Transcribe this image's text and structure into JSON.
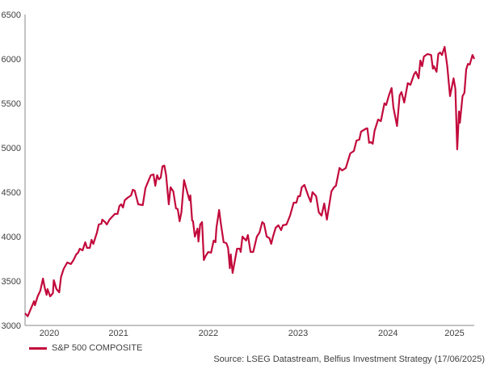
{
  "chart_data": {
    "type": "line",
    "title": "",
    "xlabel": "",
    "ylabel": "",
    "ylim": [
      3000,
      6500
    ],
    "xlim": [
      2020.5,
      2025.5
    ],
    "yticks": [
      3000,
      3500,
      4000,
      4500,
      5000,
      5500,
      6000,
      6500
    ],
    "xticks": [
      {
        "label": "2020",
        "at": 2020.77
      },
      {
        "label": "2021",
        "at": 2021.54
      },
      {
        "label": "2022",
        "at": 2022.54
      },
      {
        "label": "2023",
        "at": 2023.54
      },
      {
        "label": "2024",
        "at": 2024.54
      },
      {
        "label": "2025",
        "at": 2025.28
      }
    ],
    "grid": false,
    "legend_position": "bottom-left",
    "series": [
      {
        "name": "S&P 500 COMPOSITE",
        "color": "#c20a3c",
        "x": [
          2020.5,
          2020.53,
          2020.6,
          2020.61,
          2020.64,
          2020.67,
          2020.7,
          2020.72,
          2020.74,
          2020.75,
          2020.78,
          2020.81,
          2020.82,
          2020.85,
          2020.88,
          2020.9,
          2020.93,
          2020.97,
          2021.01,
          2021.04,
          2021.07,
          2021.09,
          2021.11,
          2021.14,
          2021.17,
          2021.19,
          2021.22,
          2021.24,
          2021.26,
          2021.3,
          2021.32,
          2021.35,
          2021.36,
          2021.39,
          2021.41,
          2021.44,
          2021.5,
          2021.53,
          2021.55,
          2021.57,
          2021.59,
          2021.61,
          2021.64,
          2021.68,
          2021.7,
          2021.72,
          2021.76,
          2021.81,
          2021.84,
          2021.88,
          2021.9,
          2021.93,
          2021.95,
          2021.97,
          2021.99,
          2022.01,
          2022.03,
          2022.05,
          2022.07,
          2022.1,
          2022.12,
          2022.15,
          2022.18,
          2022.2,
          2022.22,
          2022.24,
          2022.27,
          2022.31,
          2022.33,
          2022.34,
          2022.36,
          2022.37,
          2022.39,
          2022.42,
          2022.43,
          2022.45,
          2022.47,
          2022.49,
          2022.51,
          2022.54,
          2022.57,
          2022.6,
          2022.62,
          2022.63,
          2022.66,
          2022.68,
          2022.71,
          2022.74,
          2022.76,
          2022.78,
          2022.79,
          2022.81,
          2022.86,
          2022.89,
          2022.9,
          2022.92,
          2022.96,
          2022.98,
          2023.01,
          2023.04,
          2023.08,
          2023.11,
          2023.14,
          2023.16,
          2023.19,
          2023.22,
          2023.24,
          2023.26,
          2023.29,
          2023.32,
          2023.35,
          2023.37,
          2023.41,
          2023.45,
          2023.49,
          2023.52,
          2023.54,
          2023.56,
          2023.58,
          2023.61,
          2023.65,
          2023.68,
          2023.7,
          2023.74,
          2023.77,
          2023.8,
          2023.83,
          2023.86,
          2023.91,
          2023.94,
          2023.96,
          2024.0,
          2024.03,
          2024.07,
          2024.12,
          2024.16,
          2024.19,
          2024.22,
          2024.24,
          2024.3,
          2024.31,
          2024.33,
          2024.35,
          2024.37,
          2024.39,
          2024.43,
          2024.46,
          2024.5,
          2024.52,
          2024.55,
          2024.58,
          2024.6,
          2024.64,
          2024.67,
          2024.69,
          2024.72,
          2024.76,
          2024.79,
          2024.83,
          2024.85,
          2024.88,
          2024.9,
          2024.92,
          2024.94,
          2024.98,
          2025.02,
          2025.04,
          2025.05,
          2025.08,
          2025.1,
          2025.12,
          2025.14,
          2025.17,
          2025.2,
          2025.23,
          2025.27,
          2025.29,
          2025.31,
          2025.33,
          2025.34,
          2025.37,
          2025.39,
          2025.41,
          2025.43,
          2025.45,
          2025.48,
          2025.5
        ],
        "y": [
          3136,
          3103,
          3273,
          3227,
          3327,
          3391,
          3527,
          3418,
          3345,
          3409,
          3327,
          3364,
          3509,
          3409,
          3373,
          3545,
          3636,
          3709,
          3691,
          3736,
          3800,
          3818,
          3864,
          3845,
          3936,
          3873,
          3873,
          3964,
          3918,
          4045,
          4136,
          4145,
          4191,
          4164,
          4136,
          4191,
          4255,
          4255,
          4345,
          4364,
          4327,
          4409,
          4436,
          4464,
          4527,
          4518,
          4364,
          4355,
          4545,
          4645,
          4691,
          4700,
          4573,
          4691,
          4645,
          4664,
          4791,
          4800,
          4691,
          4364,
          4555,
          4509,
          4318,
          4309,
          4173,
          4273,
          4636,
          4482,
          4409,
          4464,
          4182,
          4173,
          4000,
          4091,
          3945,
          4136,
          4164,
          3736,
          3782,
          3827,
          3818,
          3955,
          3936,
          4100,
          4300,
          4145,
          3936,
          3927,
          3873,
          3645,
          3800,
          3591,
          3864,
          3864,
          3827,
          4000,
          3955,
          4018,
          3827,
          3827,
          4000,
          4045,
          4164,
          4145,
          4000,
          3982,
          3918,
          4000,
          4100,
          4127,
          4073,
          4127,
          4136,
          4236,
          4382,
          4382,
          4455,
          4455,
          4555,
          4582,
          4464,
          4391,
          4500,
          4455,
          4273,
          4236,
          4373,
          4191,
          4509,
          4555,
          4573,
          4773,
          4745,
          4773,
          4936,
          4964,
          5082,
          5091,
          5182,
          5218,
          5218,
          5055,
          5064,
          5045,
          5191,
          5318,
          5300,
          5500,
          5482,
          5591,
          5673,
          5455,
          5245,
          5591,
          5627,
          5509,
          5727,
          5709,
          5827,
          5855,
          5782,
          5982,
          5918,
          6027,
          6055,
          6045,
          5891,
          5918,
          5855,
          6055,
          6073,
          6045,
          6136,
          5918,
          5582,
          5782,
          5664,
          4982,
          5409,
          5282,
          5582,
          5618,
          5882,
          5945,
          5936,
          6045,
          6000
        ]
      }
    ],
    "source": "Source: LSEG Datastream, Belfius Investment Strategy (17/06/2025)"
  }
}
